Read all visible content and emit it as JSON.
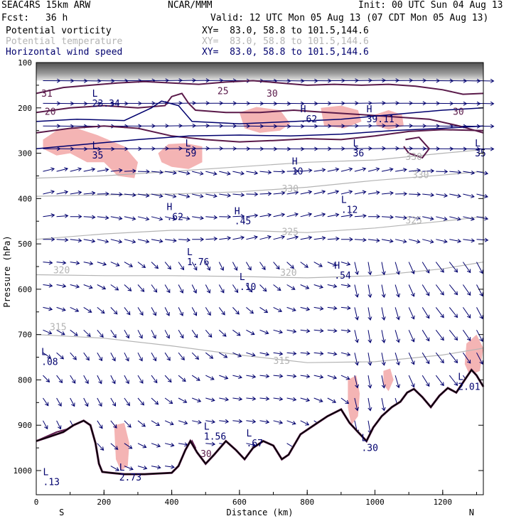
{
  "header": {
    "model": "SEAC4RS 15km ARW",
    "org": "NCAR/MMM",
    "init": "Init: 00 UTC Sun 04 Aug 13",
    "fcst_label": "Fcst:",
    "fcst_value": "36 h",
    "valid": "Valid: 12 UTC Mon 05 Aug 13 (07 CDT Mon 05 Aug 13)"
  },
  "fields": [
    {
      "name": "Potential vorticity",
      "xy": "XY=  83.0, 58.8 to 101.5,144.6",
      "color": "#000000"
    },
    {
      "name": "Potential temperature",
      "xy": "XY=  83.0, 58.8 to 101.5,144.6",
      "color": "#b4b4b4"
    },
    {
      "name": "Horizontal wind speed",
      "xy": "XY=  83.0, 58.8 to 101.5,144.6",
      "color": "#00006e"
    }
  ],
  "chart_data": {
    "type": "vertical cross-section",
    "xlabel": "Distance (km)",
    "ylabel": "Pressure (hPa)",
    "xlim": [
      0,
      1320
    ],
    "ylim": [
      1020,
      100
    ],
    "x_ticks": [
      "0",
      "200",
      "400",
      "600",
      "800",
      "1000",
      "1200"
    ],
    "y_ticks": [
      "100",
      "200",
      "300",
      "400",
      "500",
      "600",
      "700",
      "800",
      "900",
      "1000"
    ],
    "x_end_labels": {
      "left": "S",
      "right": "N"
    },
    "colors": {
      "pv": "#5a1a4a",
      "theta": "#b4b4b4",
      "wind": "#00006e",
      "pv_fill": "#f4b4b4",
      "terrain": "#000000"
    },
    "theta_contour_labels": [
      {
        "text": "320",
        "x": 50,
        "p": 565
      },
      {
        "text": "320",
        "x": 720,
        "p": 570
      },
      {
        "text": "325",
        "x": 725,
        "p": 480
      },
      {
        "text": "325",
        "x": 1090,
        "p": 455
      },
      {
        "text": "330",
        "x": 725,
        "p": 385
      },
      {
        "text": "330",
        "x": 1110,
        "p": 355
      },
      {
        "text": "330",
        "x": 1090,
        "p": 315
      },
      {
        "text": "315",
        "x": 40,
        "p": 690
      },
      {
        "text": "315",
        "x": 700,
        "p": 765
      }
    ],
    "wind_extrema_labels": [
      {
        "type": "L",
        "value": "23.34",
        "x": 165,
        "p": 175
      },
      {
        "type": "L",
        "value": "35",
        "x": 165,
        "p": 290
      },
      {
        "type": "L",
        "value": "59",
        "x": 440,
        "p": 285
      },
      {
        "type": "H",
        "value": ".62",
        "x": 780,
        "p": 210
      },
      {
        "type": "H",
        "value": "39.11",
        "x": 975,
        "p": 210
      },
      {
        "type": "H",
        "value": "10",
        "x": 755,
        "p": 325
      },
      {
        "type": "L",
        "value": "36",
        "x": 935,
        "p": 285
      },
      {
        "type": "L",
        "value": "35",
        "x": 1295,
        "p": 285
      },
      {
        "type": "H",
        "value": ".62",
        "x": 385,
        "p": 425
      },
      {
        "type": "H",
        "value": ".45",
        "x": 585,
        "p": 435
      },
      {
        "type": "L",
        "value": ".12",
        "x": 900,
        "p": 410
      },
      {
        "type": "L",
        "value": "1.76",
        "x": 445,
        "p": 525
      },
      {
        "type": "L",
        "value": ".10",
        "x": 600,
        "p": 580
      },
      {
        "type": "H",
        "value": ".54",
        "x": 880,
        "p": 555
      },
      {
        "type": "L",
        "value": ".08",
        "x": 15,
        "p": 745
      },
      {
        "type": "L",
        "value": "2.01",
        "x": 1245,
        "p": 800
      },
      {
        "type": "L",
        "value": "1.56",
        "x": 495,
        "p": 910
      },
      {
        "type": "L",
        "value": ".67",
        "x": 620,
        "p": 925
      },
      {
        "type": "L",
        "value": ".13",
        "x": 20,
        "p": 1010
      },
      {
        "type": "L",
        "value": "2.73",
        "x": 245,
        "p": 1000
      },
      {
        "type": "L",
        "value": ".30",
        "x": 960,
        "p": 935
      }
    ],
    "pv_labels": [
      {
        "text": "31",
        "x": 15,
        "p": 175
      },
      {
        "text": "25",
        "x": 535,
        "p": 170
      },
      {
        "text": "30",
        "x": 680,
        "p": 175
      },
      {
        "text": "20",
        "x": 25,
        "p": 215
      },
      {
        "text": "30",
        "x": 1230,
        "p": 215
      },
      {
        "text": "30",
        "x": 485,
        "p": 970
      }
    ],
    "terrain_pressure": [
      {
        "x": 0,
        "p": 935
      },
      {
        "x": 40,
        "p": 925
      },
      {
        "x": 80,
        "p": 915
      },
      {
        "x": 110,
        "p": 900
      },
      {
        "x": 140,
        "p": 890
      },
      {
        "x": 160,
        "p": 900
      },
      {
        "x": 175,
        "p": 940
      },
      {
        "x": 185,
        "p": 985
      },
      {
        "x": 195,
        "p": 1003
      },
      {
        "x": 220,
        "p": 1005
      },
      {
        "x": 260,
        "p": 1008
      },
      {
        "x": 320,
        "p": 1008
      },
      {
        "x": 400,
        "p": 1005
      },
      {
        "x": 420,
        "p": 990
      },
      {
        "x": 440,
        "p": 955
      },
      {
        "x": 455,
        "p": 935
      },
      {
        "x": 475,
        "p": 960
      },
      {
        "x": 500,
        "p": 985
      },
      {
        "x": 525,
        "p": 965
      },
      {
        "x": 560,
        "p": 935
      },
      {
        "x": 590,
        "p": 955
      },
      {
        "x": 615,
        "p": 975
      },
      {
        "x": 640,
        "p": 950
      },
      {
        "x": 670,
        "p": 935
      },
      {
        "x": 700,
        "p": 945
      },
      {
        "x": 725,
        "p": 975
      },
      {
        "x": 745,
        "p": 965
      },
      {
        "x": 780,
        "p": 920
      },
      {
        "x": 820,
        "p": 900
      },
      {
        "x": 860,
        "p": 880
      },
      {
        "x": 900,
        "p": 865
      },
      {
        "x": 925,
        "p": 895
      },
      {
        "x": 950,
        "p": 915
      },
      {
        "x": 975,
        "p": 935
      },
      {
        "x": 995,
        "p": 905
      },
      {
        "x": 1020,
        "p": 880
      },
      {
        "x": 1050,
        "p": 860
      },
      {
        "x": 1075,
        "p": 848
      },
      {
        "x": 1095,
        "p": 828
      },
      {
        "x": 1115,
        "p": 820
      },
      {
        "x": 1140,
        "p": 838
      },
      {
        "x": 1165,
        "p": 860
      },
      {
        "x": 1190,
        "p": 835
      },
      {
        "x": 1215,
        "p": 818
      },
      {
        "x": 1240,
        "p": 828
      },
      {
        "x": 1265,
        "p": 800
      },
      {
        "x": 1285,
        "p": 778
      },
      {
        "x": 1300,
        "p": 790
      },
      {
        "x": 1320,
        "p": 815
      }
    ],
    "theta_lines": [
      {
        "value": 315,
        "points": [
          [
            0,
            700
          ],
          [
            200,
            708
          ],
          [
            400,
            725
          ],
          [
            600,
            745
          ],
          [
            800,
            762
          ],
          [
            1000,
            760
          ],
          [
            1200,
            745
          ],
          [
            1320,
            730
          ]
        ]
      },
      {
        "value": 320,
        "points": [
          [
            0,
            568
          ],
          [
            200,
            570
          ],
          [
            400,
            570
          ],
          [
            600,
            572
          ],
          [
            800,
            575
          ],
          [
            1000,
            570
          ],
          [
            1200,
            555
          ],
          [
            1320,
            540
          ]
        ]
      },
      {
        "value": 325,
        "points": [
          [
            0,
            490
          ],
          [
            200,
            478
          ],
          [
            400,
            470
          ],
          [
            600,
            470
          ],
          [
            800,
            475
          ],
          [
            1000,
            465
          ],
          [
            1200,
            450
          ],
          [
            1320,
            440
          ]
        ]
      },
      {
        "value": 330,
        "points": [
          [
            0,
            395
          ],
          [
            200,
            392
          ],
          [
            400,
            390
          ],
          [
            600,
            385
          ],
          [
            800,
            375
          ],
          [
            1000,
            360
          ],
          [
            1200,
            348
          ],
          [
            1320,
            340
          ]
        ]
      },
      {
        "value": 330,
        "points": [
          [
            0,
            355
          ],
          [
            200,
            350
          ],
          [
            400,
            340
          ],
          [
            600,
            330
          ],
          [
            800,
            320
          ],
          [
            1000,
            315
          ],
          [
            1200,
            300
          ],
          [
            1320,
            292
          ]
        ]
      }
    ],
    "pv_fill_regions": [
      [
        [
          20,
          270
        ],
        [
          60,
          250
        ],
        [
          120,
          245
        ],
        [
          180,
          260
        ],
        [
          260,
          285
        ],
        [
          300,
          320
        ],
        [
          290,
          355
        ],
        [
          240,
          350
        ],
        [
          200,
          320
        ],
        [
          150,
          320
        ],
        [
          100,
          300
        ],
        [
          60,
          305
        ],
        [
          20,
          290
        ]
      ],
      [
        [
          360,
          300
        ],
        [
          390,
          280
        ],
        [
          440,
          278
        ],
        [
          490,
          285
        ],
        [
          490,
          320
        ],
        [
          450,
          335
        ],
        [
          400,
          330
        ],
        [
          370,
          320
        ]
      ],
      [
        [
          600,
          210
        ],
        [
          650,
          198
        ],
        [
          720,
          205
        ],
        [
          750,
          235
        ],
        [
          720,
          250
        ],
        [
          660,
          255
        ],
        [
          615,
          245
        ]
      ],
      [
        [
          840,
          200
        ],
        [
          900,
          195
        ],
        [
          950,
          205
        ],
        [
          960,
          230
        ],
        [
          910,
          245
        ],
        [
          850,
          240
        ]
      ],
      [
        [
          1000,
          215
        ],
        [
          1040,
          205
        ],
        [
          1080,
          215
        ],
        [
          1085,
          240
        ],
        [
          1040,
          248
        ],
        [
          1005,
          240
        ]
      ],
      [
        [
          230,
          900
        ],
        [
          260,
          895
        ],
        [
          275,
          940
        ],
        [
          270,
          990
        ],
        [
          250,
          1000
        ],
        [
          235,
          975
        ]
      ],
      [
        [
          920,
          800
        ],
        [
          945,
          790
        ],
        [
          955,
          830
        ],
        [
          950,
          880
        ],
        [
          930,
          900
        ],
        [
          920,
          860
        ]
      ],
      [
        [
          1025,
          780
        ],
        [
          1045,
          775
        ],
        [
          1055,
          800
        ],
        [
          1040,
          825
        ],
        [
          1025,
          810
        ]
      ],
      [
        [
          1270,
          720
        ],
        [
          1300,
          700
        ],
        [
          1320,
          730
        ],
        [
          1310,
          780
        ],
        [
          1280,
          790
        ],
        [
          1265,
          765
        ]
      ]
    ],
    "pv_contours": [
      [
        [
          0,
          168
        ],
        [
          80,
          155
        ],
        [
          160,
          150
        ],
        [
          240,
          145
        ],
        [
          320,
          142
        ],
        [
          400,
          145
        ],
        [
          480,
          148
        ],
        [
          560,
          143
        ],
        [
          640,
          140
        ],
        [
          720,
          145
        ],
        [
          800,
          150
        ],
        [
          880,
          148
        ],
        [
          960,
          150
        ],
        [
          1040,
          148
        ],
        [
          1120,
          152
        ],
        [
          1200,
          160
        ],
        [
          1260,
          170
        ],
        [
          1320,
          168
        ]
      ],
      [
        [
          0,
          210
        ],
        [
          100,
          200
        ],
        [
          200,
          195
        ],
        [
          300,
          200
        ],
        [
          380,
          195
        ],
        [
          400,
          175
        ],
        [
          430,
          168
        ],
        [
          450,
          190
        ],
        [
          470,
          205
        ],
        [
          560,
          210
        ],
        [
          660,
          210
        ],
        [
          760,
          205
        ],
        [
          860,
          210
        ],
        [
          960,
          215
        ],
        [
          1060,
          220
        ],
        [
          1160,
          225
        ],
        [
          1250,
          240
        ],
        [
          1320,
          255
        ]
      ],
      [
        [
          0,
          255
        ],
        [
          100,
          245
        ],
        [
          200,
          240
        ],
        [
          300,
          245
        ],
        [
          400,
          262
        ],
        [
          500,
          270
        ],
        [
          600,
          275
        ],
        [
          700,
          272
        ],
        [
          800,
          268
        ],
        [
          900,
          270
        ],
        [
          1000,
          262
        ],
        [
          1100,
          252
        ],
        [
          1200,
          248
        ],
        [
          1320,
          250
        ]
      ],
      [
        [
          1090,
          270
        ],
        [
          1130,
          265
        ],
        [
          1160,
          290
        ],
        [
          1140,
          310
        ],
        [
          1100,
          300
        ],
        [
          1085,
          285
        ]
      ],
      [
        [
          0,
          935
        ],
        [
          60,
          915
        ],
        [
          110,
          905
        ],
        [
          140,
          892
        ],
        [
          160,
          900
        ],
        [
          175,
          942
        ],
        [
          185,
          985
        ]
      ],
      [
        [
          450,
          948
        ],
        [
          460,
          935
        ],
        [
          470,
          950
        ],
        [
          460,
          960
        ],
        [
          450,
          955
        ]
      ]
    ],
    "wind_pressure_rows": [
      140,
      190,
      240,
      290,
      340,
      390,
      440,
      490,
      540,
      590,
      640,
      690,
      740,
      790,
      840,
      890,
      940,
      990
    ],
    "wind_x_columns": [
      20,
      60,
      100,
      140,
      180,
      220,
      260,
      300,
      340,
      380,
      420,
      460,
      500,
      540,
      580,
      620,
      660,
      700,
      740,
      780,
      820,
      860,
      900,
      940,
      980,
      1020,
      1060,
      1100,
      1140,
      1180,
      1220,
      1260,
      1300
    ]
  }
}
